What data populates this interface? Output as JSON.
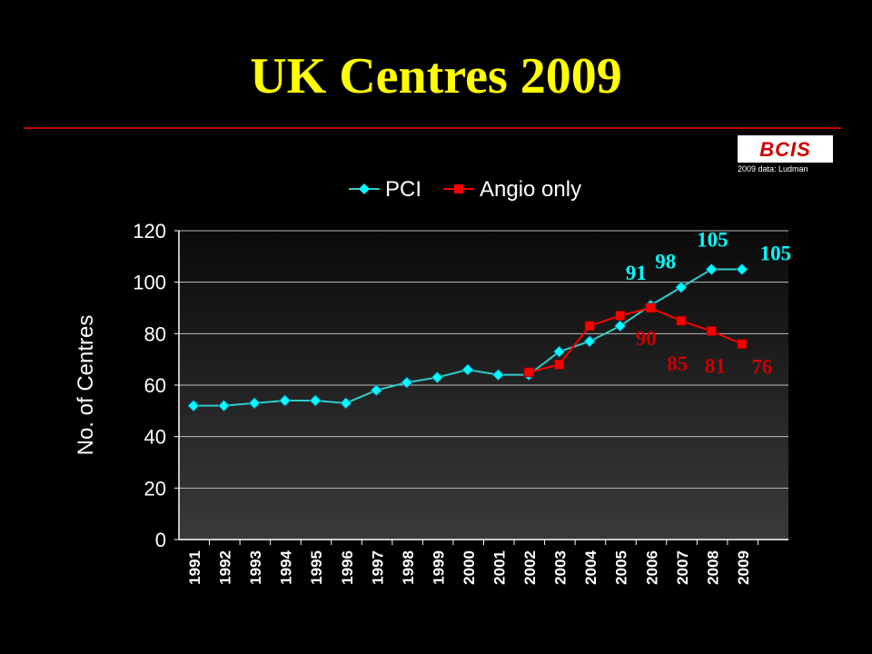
{
  "slide": {
    "title": "UK Centres 2009",
    "logo_text": "BCIS",
    "logo_note": "2009 data: Ludman"
  },
  "colors": {
    "background": "#000000",
    "title": "#ffff00",
    "rule": "#c00000",
    "pci": "#00ffff",
    "pci_line": "#33cccc",
    "angio": "#ff0000",
    "angio_label": "#cc0000"
  },
  "chart_data": {
    "type": "line",
    "title": "",
    "xlabel": "",
    "ylabel": "No. of Centres",
    "categories": [
      "1991",
      "1992",
      "1993",
      "1994",
      "1995",
      "1996",
      "1997",
      "1998",
      "1999",
      "2000",
      "2001",
      "2002",
      "2003",
      "2004",
      "2005",
      "2006",
      "2007",
      "2008",
      "2009"
    ],
    "ylim": [
      0,
      120
    ],
    "yticks": [
      0,
      20,
      40,
      60,
      80,
      100,
      120
    ],
    "grid": true,
    "legend": "top",
    "series": [
      {
        "name": "PCI",
        "color": "#00ffff",
        "marker": "diamond",
        "values": [
          52,
          52,
          53,
          54,
          54,
          53,
          58,
          61,
          63,
          66,
          64,
          64,
          73,
          77,
          83,
          91,
          98,
          105,
          105
        ]
      },
      {
        "name": "Angio only",
        "color": "#ff0000",
        "marker": "square",
        "values": [
          null,
          null,
          null,
          null,
          null,
          null,
          null,
          null,
          null,
          null,
          null,
          65,
          68,
          83,
          87,
          90,
          85,
          81,
          76
        ]
      }
    ],
    "data_labels": [
      {
        "series": "PCI",
        "category": "2006",
        "text": "91"
      },
      {
        "series": "PCI",
        "category": "2007",
        "text": "98"
      },
      {
        "series": "PCI",
        "category": "2008",
        "text": "105"
      },
      {
        "series": "PCI",
        "category": "2009",
        "text": "105"
      },
      {
        "series": "Angio only",
        "category": "2006",
        "text": "90"
      },
      {
        "series": "Angio only",
        "category": "2007",
        "text": "85"
      },
      {
        "series": "Angio only",
        "category": "2008",
        "text": "81"
      },
      {
        "series": "Angio only",
        "category": "2009",
        "text": "76"
      }
    ]
  }
}
